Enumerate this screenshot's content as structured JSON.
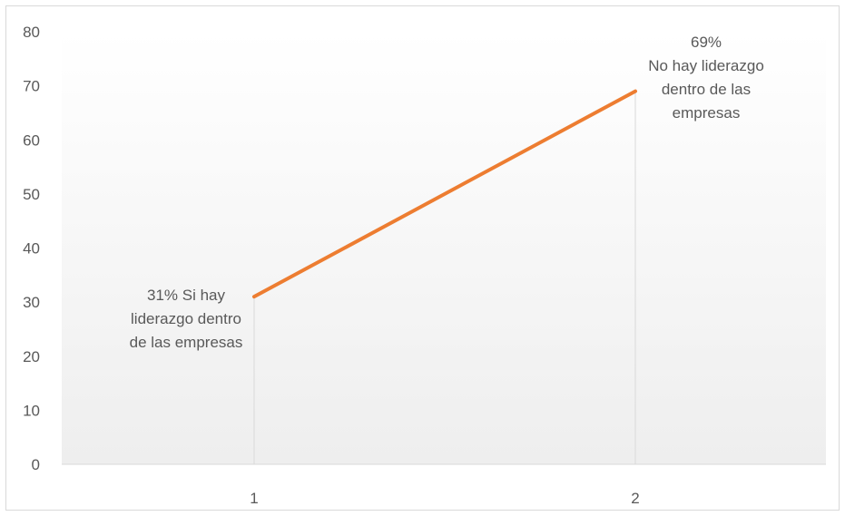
{
  "chart_data": {
    "type": "line",
    "title": "",
    "xlabel": "",
    "ylabel": "",
    "categories": [
      "1",
      "2"
    ],
    "series": [
      {
        "values": [
          31,
          69
        ],
        "color": "#ED7D31",
        "data_labels": [
          [
            "31% Si hay",
            "liderazgo dentro",
            "de las empresas"
          ],
          [
            "69%",
            "No hay liderazgo",
            "dentro de las",
            "empresas"
          ]
        ]
      }
    ],
    "ylim": [
      0,
      80
    ],
    "y_ticks": [
      0,
      10,
      20,
      30,
      40,
      50,
      60,
      70,
      80
    ],
    "gridlines": false,
    "drop_lines": true,
    "legend": "none"
  }
}
